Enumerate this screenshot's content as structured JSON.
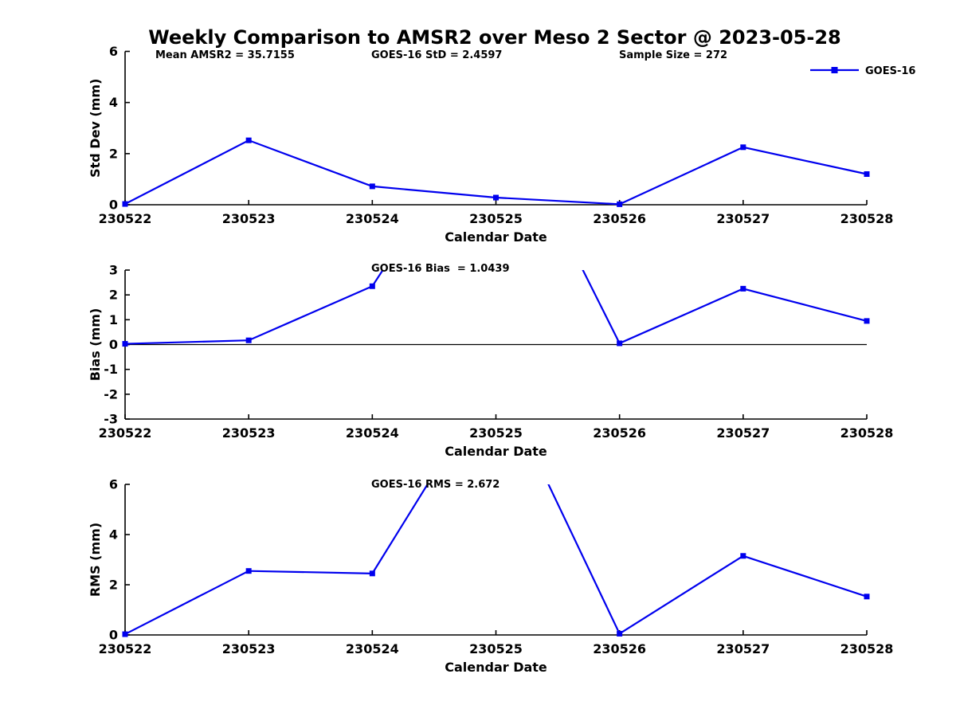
{
  "figure_title": "Weekly Comparison to AMSR2 over Meso 2 Sector @ 2023-05-28",
  "legend": {
    "label": "GOES-16"
  },
  "colors": {
    "series_line": "#0000EE",
    "axis": "#000000",
    "text": "#000000",
    "background": "#FFFFFF"
  },
  "chart_data": [
    {
      "type": "line",
      "name": "std-dev-vs-date",
      "x": [
        "230522",
        "230523",
        "230524",
        "230525",
        "230526",
        "230527",
        "230528"
      ],
      "series": [
        {
          "name": "GOES-16",
          "values": [
            0.03,
            2.52,
            0.72,
            0.28,
            0.02,
            2.25,
            1.2
          ]
        }
      ],
      "xlabel": "Calendar Date",
      "ylabel": "Std Dev (mm)",
      "ylim": [
        0,
        6
      ],
      "yticks": [
        0,
        2,
        4,
        6
      ],
      "grid": false,
      "legend_position": "upper-right-outside",
      "annotations": [
        "Mean AMSR2 = 35.7155",
        "GOES-16 StD = 2.4597",
        "Sample Size = 272"
      ]
    },
    {
      "type": "line",
      "name": "bias-vs-date",
      "x": [
        "230522",
        "230523",
        "230524",
        "230525",
        "230526",
        "230527",
        "230528"
      ],
      "series": [
        {
          "name": "GOES-16",
          "values": [
            0.03,
            0.17,
            2.35,
            10.0,
            0.05,
            2.25,
            0.95
          ]
        }
      ],
      "xlabel": "Calendar Date",
      "ylabel": "Bias (mm)",
      "ylim": [
        -3,
        3
      ],
      "yticks": [
        -3,
        -2,
        -1,
        0,
        1,
        2,
        3
      ],
      "grid": false,
      "zero_line": true,
      "annotations": [
        "GOES-16 Bias  = 1.0439"
      ],
      "note": "230525 point is above the y-axis range; the line is clipped at the top of the axes"
    },
    {
      "type": "line",
      "name": "rms-vs-date",
      "x": [
        "230522",
        "230523",
        "230524",
        "230525",
        "230526",
        "230527",
        "230528"
      ],
      "series": [
        {
          "name": "GOES-16",
          "values": [
            0.03,
            2.55,
            2.45,
            10.4,
            0.05,
            3.15,
            1.53
          ]
        }
      ],
      "xlabel": "Calendar Date",
      "ylabel": "RMS (mm)",
      "ylim": [
        0,
        6
      ],
      "yticks": [
        0,
        2,
        4,
        6
      ],
      "grid": false,
      "annotations": [
        "GOES-16 RMS = 2.672"
      ],
      "note": "230525 point is above the y-axis range; the line is clipped at the top of the axes"
    }
  ]
}
